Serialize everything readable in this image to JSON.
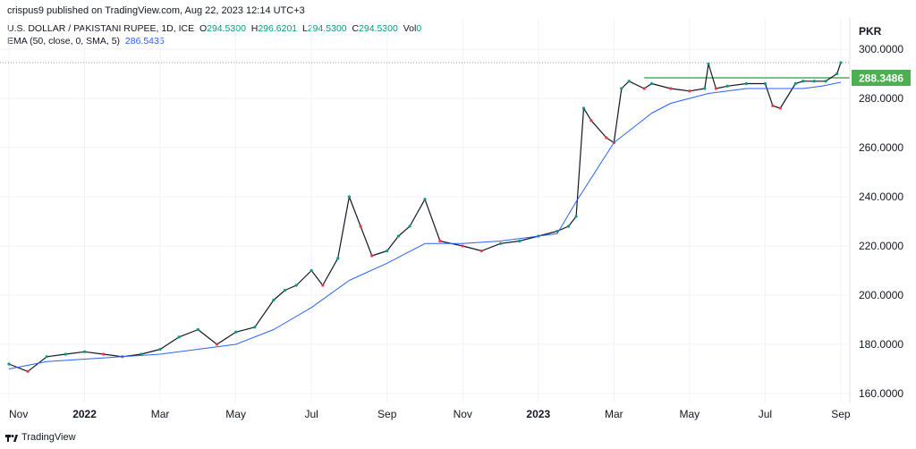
{
  "header": {
    "published": "crispus9 published on TradingView.com, Aug 22, 2023 12:14 UTC+3",
    "symbol_line": "U.S. DOLLAR / PAKISTANI RUPEE, 1D, ICE",
    "ohlc": {
      "o_label": "O",
      "o": "294.5300",
      "h_label": "H",
      "h": "296.6201",
      "l_label": "L",
      "l": "294.5300",
      "c_label": "C",
      "c": "294.5300",
      "vol_label": "Vol",
      "vol": "0"
    },
    "indicator": "EMA (50, close, 0, SMA, 5)",
    "indicator_value": "286.5435",
    "currency": "PKR"
  },
  "footer": {
    "brand": "TradingView"
  },
  "colors": {
    "up": "#089981",
    "down": "#f23645",
    "ema": "#2962ff",
    "resistance": "#4caf50",
    "grid": "#f0f3fa",
    "last_price_line": "#9598a1"
  },
  "chart_data": {
    "type": "line",
    "x_ticks": [
      "Nov",
      "2022",
      "Mar",
      "May",
      "Jul",
      "Sep",
      "Nov",
      "2023",
      "Mar",
      "May",
      "Jul",
      "Sep"
    ],
    "x_tick_idx": [
      0,
      2,
      4,
      6,
      8,
      10,
      12,
      14,
      16,
      18,
      20,
      22
    ],
    "ylim": [
      160,
      300
    ],
    "yticks": [
      "300.0000",
      "280.0000",
      "260.0000",
      "240.0000",
      "220.0000",
      "200.0000",
      "180.0000",
      "160.0000"
    ],
    "ytick_values": [
      300,
      280,
      260,
      240,
      220,
      200,
      180,
      160
    ],
    "series": [
      {
        "x": [
          0,
          0.5,
          1,
          1.5,
          2,
          2.5,
          3,
          3.5,
          4,
          4.5,
          5,
          5.5,
          6,
          6.5,
          7,
          7.3,
          7.6,
          8,
          8.3,
          8.7,
          9,
          9.3,
          9.6,
          10,
          10.3,
          10.6,
          11,
          11.4,
          12,
          12.5,
          13,
          13.5,
          14,
          14.5,
          14.8,
          15,
          15.2,
          15.4,
          15.8,
          16,
          16.2,
          16.4,
          16.8,
          17,
          17.5,
          18,
          18.4,
          18.5,
          18.7,
          19,
          19.5,
          20,
          20.2,
          20.4,
          20.8,
          21,
          21.3,
          21.6,
          21.9,
          22
        ],
        "values": [
          172,
          169,
          175,
          176,
          177,
          176,
          175,
          176,
          178,
          183,
          186,
          180,
          185,
          187,
          198,
          202,
          204,
          210,
          204,
          215,
          240,
          228,
          216,
          218,
          224,
          228,
          239,
          222,
          220,
          218,
          221,
          222,
          224,
          226,
          228,
          232,
          276,
          271,
          264,
          262,
          284,
          287,
          284,
          286,
          284,
          283,
          284,
          294,
          284,
          285,
          286,
          286,
          277,
          276,
          286,
          287,
          287,
          287,
          290,
          294.53
        ]
      },
      {
        "x": [
          0,
          1,
          2,
          3,
          4,
          5,
          6,
          7,
          8,
          9,
          10,
          11,
          12,
          13,
          14,
          14.5,
          15,
          15.5,
          16,
          16.5,
          17,
          17.5,
          18,
          18.5,
          19,
          19.5,
          20,
          20.5,
          21,
          21.5,
          22
        ],
        "values": [
          170,
          173,
          174,
          175,
          176,
          178,
          180,
          186,
          195,
          206,
          213,
          221,
          221,
          222,
          224,
          225,
          238,
          250,
          262,
          268,
          274,
          278,
          280,
          282,
          283,
          284,
          284,
          284,
          284,
          285,
          286.54
        ]
      }
    ],
    "reference_lines": [
      {
        "value": 288.3486,
        "label": "288.3486",
        "x_from": 16.8,
        "x_to": 22.4
      },
      {
        "value": 294.53,
        "dotted": true
      }
    ]
  }
}
